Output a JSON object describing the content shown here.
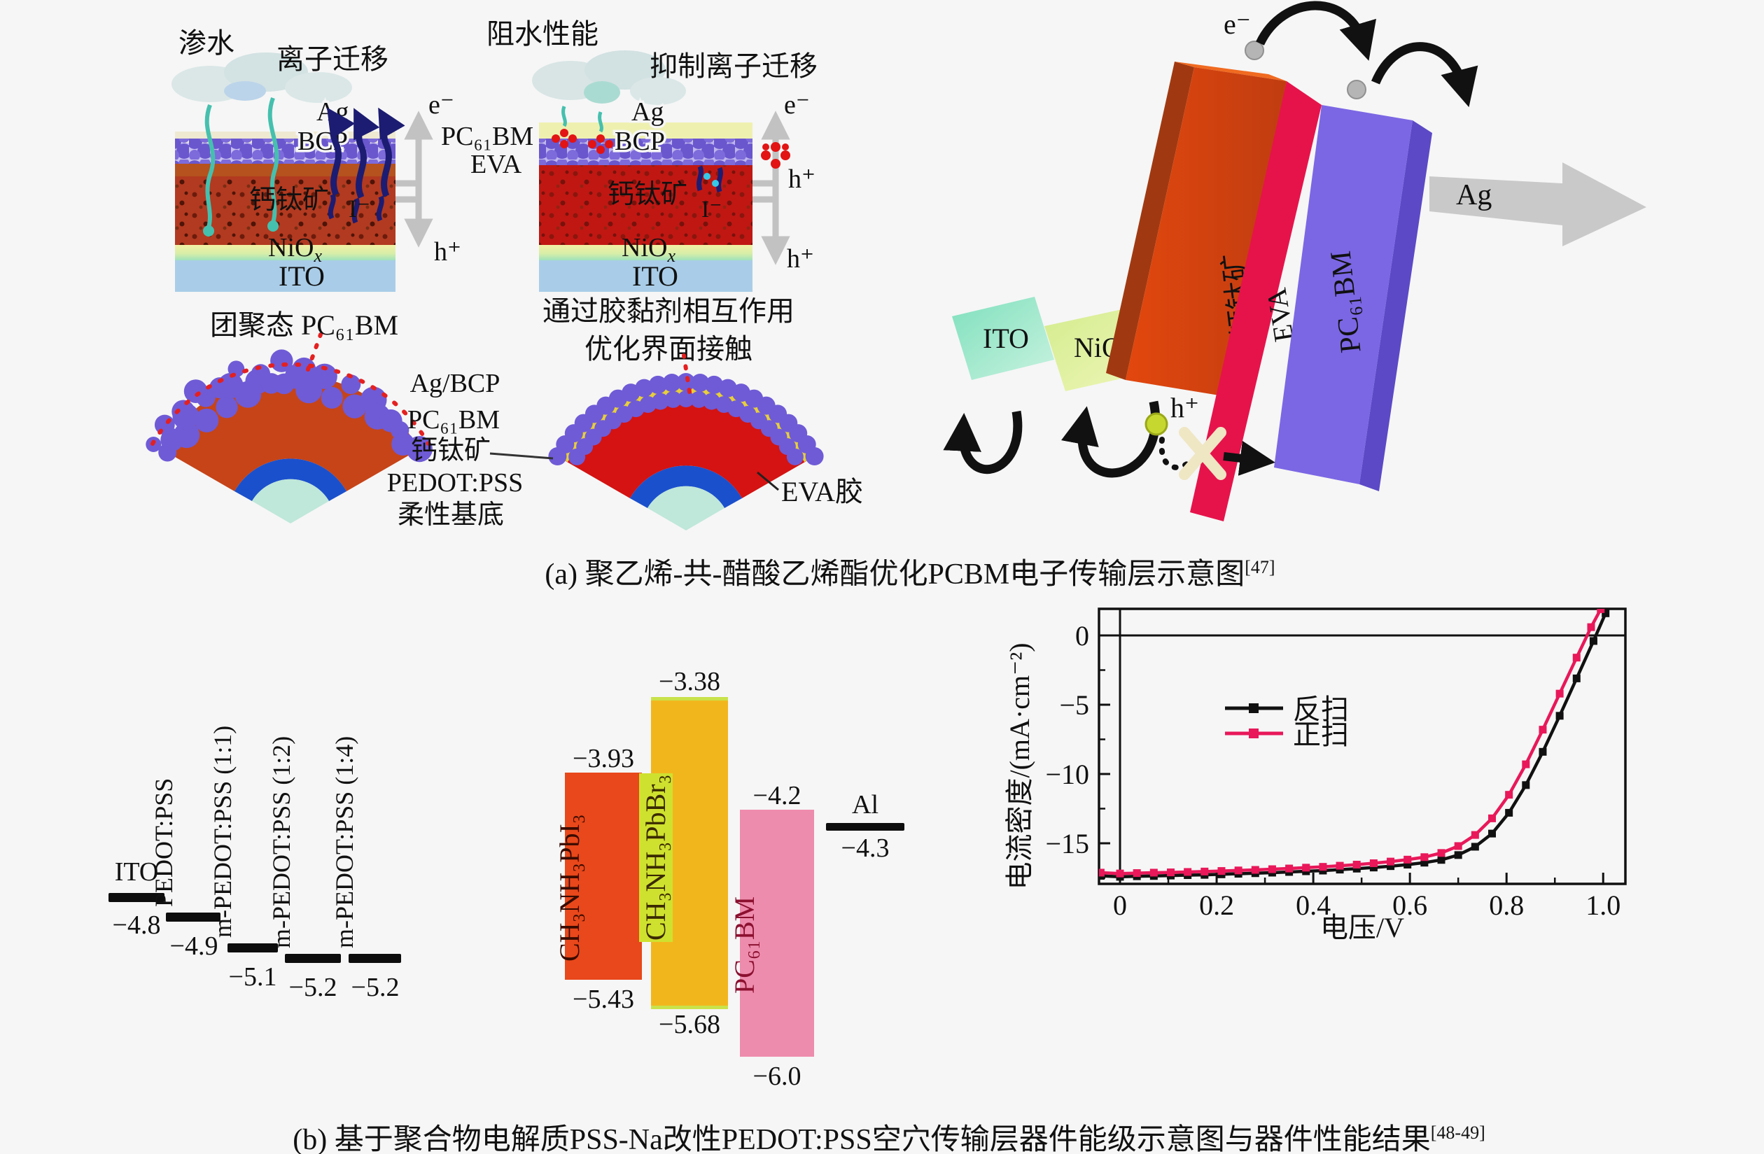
{
  "figure": {
    "background": "#f6f6f6",
    "panel_a": {
      "stack1": {
        "infiltration": "渗水",
        "ion_migration": "离子迁移",
        "ag": "Ag",
        "bcp": "BCP",
        "perovskite": "钙钛矿",
        "iodide": "I⁻",
        "niox": {
          "base": "NiO",
          "sub": "x"
        },
        "ito": "ITO"
      },
      "mid": {
        "electron": "e⁻",
        "hole": "h⁺",
        "pcbm": "PC₆₁BM",
        "eva": "EVA"
      },
      "stack2": {
        "water_blocking": "阻水性能",
        "suppress_ion": "抑制离子迁移",
        "ag": "Ag",
        "bcp": "BCP",
        "perovskite": "钙钛矿",
        "iodide": "I⁻",
        "niox": {
          "base": "NiO",
          "sub": "x"
        },
        "ito": "ITO",
        "electron": "e⁻",
        "hole_mid": "h⁺",
        "hole_bottom": "h⁺",
        "note_line1": "通过胶黏剂相互作用",
        "note_line2": "优化界面接触"
      },
      "fans": {
        "aggregated": "团聚态 PC₆₁BM",
        "stack_labels": [
          "Ag/BCP",
          "PC₆₁BM",
          "钙钛矿",
          "PEDOT:PSS",
          "柔性基底"
        ],
        "eva_glue": "EVA胶"
      },
      "threed": {
        "electron": "e⁻",
        "silver": "Ag",
        "perovskite": "钙钛矿",
        "eva": "EVA",
        "pcbm": "PC₆₁BM",
        "ito": "ITO",
        "niox": {
          "base": "NiO",
          "sub": "x"
        },
        "hole": "h⁺"
      },
      "caption": {
        "prefix": "(a)",
        "text": "聚乙烯-共-醋酸乙烯酯优化PCBM电子传输层示意图",
        "ref": "[47]"
      }
    },
    "panel_b": {
      "levels": [
        {
          "name": "ITO",
          "value": "−4.8"
        },
        {
          "name": "PEDOT:PSS",
          "value": "−4.9"
        },
        {
          "name": "m-PEDOT:PSS (1:1)",
          "value": "−5.1"
        },
        {
          "name": "m-PEDOT:PSS (1:2)",
          "value": "−5.2"
        },
        {
          "name": "m-PEDOT:PSS (1:4)",
          "value": "−5.2"
        },
        {
          "name": "Al",
          "value": "−4.3"
        }
      ],
      "bars": [
        {
          "name": "CH₃NH₃PbI₃",
          "top": "−3.93",
          "bottom": "−5.43",
          "color": "#e8481b"
        },
        {
          "name": "CH₃NH₃PbBr₃",
          "top": "−3.38",
          "bottom": "−5.68",
          "color": "#f2b61d"
        },
        {
          "name": "PC₆₁BM",
          "top": "−4.2",
          "bottom": "−6.0",
          "color": "#ee8cad"
        }
      ],
      "caption": {
        "prefix": "(b)",
        "text": "基于聚合物电解质PSS-Na改性PEDOT:PSS空穴传输层器件能级示意图与器件性能结果",
        "ref": "[48-49]"
      }
    }
  },
  "chart_data": {
    "type": "line",
    "title": "",
    "xlabel": "电压/V",
    "ylabel": "电流密度/(mA·cm⁻²)",
    "xlim": [
      -0.0435,
      1.046
    ],
    "ylim": [
      -17.93,
      1.92
    ],
    "xticks": {
      "values": [
        0,
        0.2,
        0.4,
        0.6,
        0.8,
        1.0
      ],
      "labels": [
        "0",
        "0.2",
        "0.4",
        "0.6",
        "0.8",
        "1.0"
      ]
    },
    "xminor": [
      0.1,
      0.3,
      0.5,
      0.7,
      0.9
    ],
    "yticks": {
      "values": [
        0,
        -5,
        -10,
        -15
      ],
      "labels": [
        "0",
        "−5",
        "−10",
        "−15"
      ]
    },
    "yminor": [
      -2.5,
      -7.5,
      -12.5,
      -17.5
    ],
    "grid": false,
    "legend_position": "center-left-inside",
    "series": [
      {
        "name": "反扫",
        "color": "#111111",
        "marker": "square",
        "points": [
          [
            -0.04,
            -17.35
          ],
          [
            0,
            -17.42
          ],
          [
            0.035,
            -17.38
          ],
          [
            0.07,
            -17.36
          ],
          [
            0.105,
            -17.33
          ],
          [
            0.14,
            -17.3
          ],
          [
            0.175,
            -17.28
          ],
          [
            0.21,
            -17.24
          ],
          [
            0.245,
            -17.2
          ],
          [
            0.28,
            -17.16
          ],
          [
            0.315,
            -17.12
          ],
          [
            0.35,
            -17.07
          ],
          [
            0.385,
            -17.02
          ],
          [
            0.42,
            -16.97
          ],
          [
            0.455,
            -16.9
          ],
          [
            0.49,
            -16.83
          ],
          [
            0.525,
            -16.75
          ],
          [
            0.56,
            -16.65
          ],
          [
            0.595,
            -16.54
          ],
          [
            0.63,
            -16.4
          ],
          [
            0.665,
            -16.2
          ],
          [
            0.7,
            -15.85
          ],
          [
            0.735,
            -15.25
          ],
          [
            0.77,
            -14.3
          ],
          [
            0.805,
            -12.8
          ],
          [
            0.84,
            -10.8
          ],
          [
            0.875,
            -8.4
          ],
          [
            0.91,
            -5.8
          ],
          [
            0.945,
            -3.1
          ],
          [
            0.98,
            -0.4
          ],
          [
            1.005,
            1.6
          ]
        ]
      },
      {
        "name": "正扫",
        "color": "#e8185a",
        "marker": "square",
        "points": [
          [
            -0.04,
            -17.12
          ],
          [
            0,
            -17.18
          ],
          [
            0.035,
            -17.15
          ],
          [
            0.07,
            -17.12
          ],
          [
            0.105,
            -17.1
          ],
          [
            0.14,
            -17.07
          ],
          [
            0.175,
            -17.04
          ],
          [
            0.21,
            -17.0
          ],
          [
            0.245,
            -16.96
          ],
          [
            0.28,
            -16.92
          ],
          [
            0.315,
            -16.87
          ],
          [
            0.35,
            -16.82
          ],
          [
            0.385,
            -16.76
          ],
          [
            0.42,
            -16.7
          ],
          [
            0.455,
            -16.62
          ],
          [
            0.49,
            -16.54
          ],
          [
            0.525,
            -16.44
          ],
          [
            0.56,
            -16.32
          ],
          [
            0.595,
            -16.18
          ],
          [
            0.63,
            -16.0
          ],
          [
            0.665,
            -15.7
          ],
          [
            0.7,
            -15.2
          ],
          [
            0.735,
            -14.4
          ],
          [
            0.77,
            -13.2
          ],
          [
            0.805,
            -11.5
          ],
          [
            0.84,
            -9.3
          ],
          [
            0.875,
            -6.8
          ],
          [
            0.91,
            -4.2
          ],
          [
            0.945,
            -1.6
          ],
          [
            0.975,
            0.6
          ],
          [
            0.995,
            1.9
          ]
        ]
      }
    ]
  }
}
